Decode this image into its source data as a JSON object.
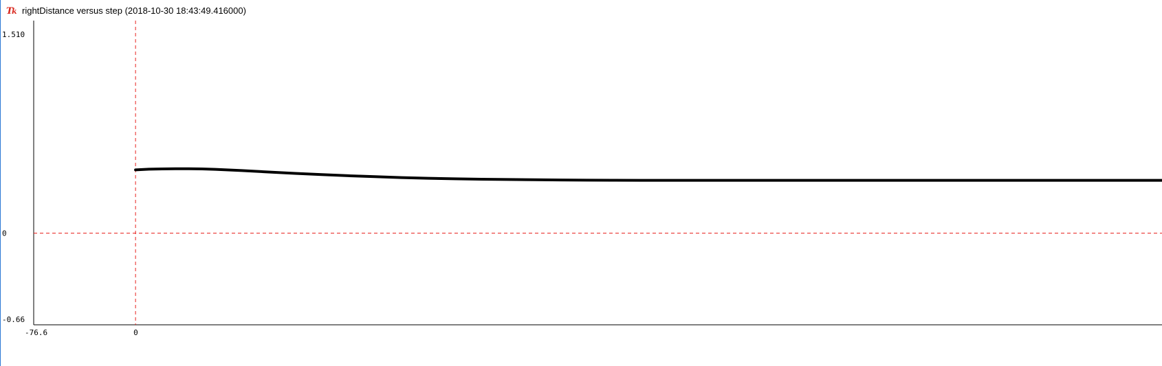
{
  "window": {
    "title": "rightDistance versus step (2018-10-30 18:43:49.416000)",
    "icon": "tk-feather-icon"
  },
  "chart_data": {
    "type": "line",
    "title": "",
    "xlabel": "",
    "ylabel": "",
    "xlim": [
      -76.6,
      772
    ],
    "ylim": [
      -0.66,
      1.51
    ],
    "x_tick_labels": [
      "-76.6",
      "0"
    ],
    "y_tick_labels": [
      "1.510",
      "0",
      "-0.66"
    ],
    "reference_lines": {
      "x": 0,
      "y": 0
    },
    "grid": false,
    "legend": "none",
    "colors": {
      "line": "#000000",
      "reference": "#e8211e",
      "axis": "#000000"
    },
    "series": [
      {
        "x": [
          0,
          10,
          20,
          30,
          40,
          50,
          60,
          80,
          100,
          120,
          140,
          160,
          180,
          200,
          220,
          240,
          260,
          280,
          300,
          320,
          340,
          360,
          380,
          400,
          450,
          500,
          550,
          600,
          650,
          700,
          750,
          772
        ],
        "y": [
          0.455,
          0.46,
          0.462,
          0.463,
          0.463,
          0.462,
          0.459,
          0.45,
          0.44,
          0.43,
          0.421,
          0.413,
          0.406,
          0.4,
          0.395,
          0.391,
          0.388,
          0.386,
          0.384,
          0.3825,
          0.381,
          0.3805,
          0.38,
          0.38,
          0.38,
          0.38,
          0.38,
          0.38,
          0.38,
          0.38,
          0.38,
          0.38
        ]
      }
    ]
  }
}
